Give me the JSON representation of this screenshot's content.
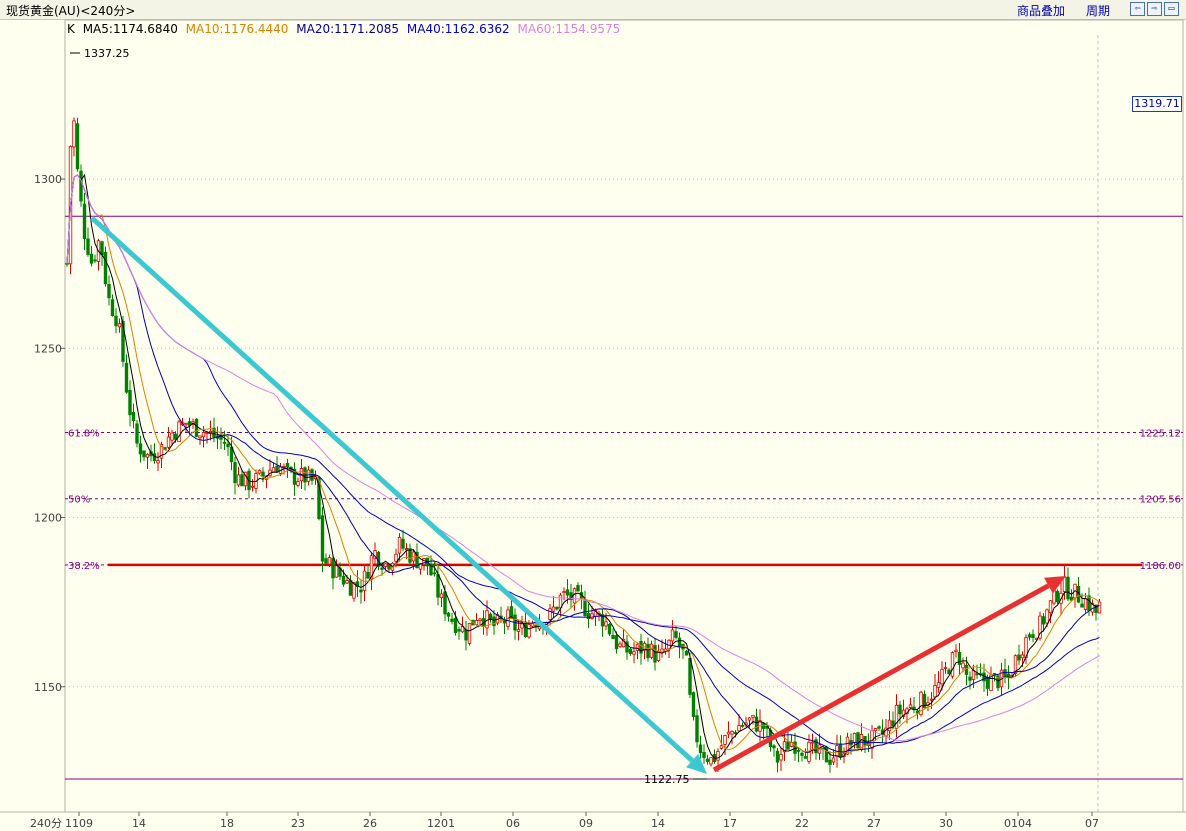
{
  "window": {
    "title": "现货黄金(AU)<240分>",
    "menu_overlay": "商品叠加",
    "menu_weekly": "周期",
    "nav_prev_icon": "⇦",
    "nav_next_icon": "⇨",
    "nav_full_icon": "▭"
  },
  "legend": {
    "k": "K",
    "ma5": "MA5:1174.6840",
    "ma10": "MA10:1176.4440",
    "ma20": "MA20:1171.2085",
    "ma40": "MA40:1162.6362",
    "ma60": "MA60:1154.9575"
  },
  "colors": {
    "ma5": "#000000",
    "ma10": "#E08000",
    "ma20": "#0000A0",
    "ma40": "#0000C8",
    "ma60": "#E080E0",
    "up_candle": "#E00000",
    "down_candle": "#008000",
    "fib_line": "#800080",
    "resistance": "#E00000",
    "down_arrow": "#3CC8D0",
    "up_arrow": "#E83030"
  },
  "current_price_tag": "1319.71",
  "chart_data": {
    "type": "candlestick",
    "period_label": "240分",
    "x_tick_labels": [
      "1109",
      "14",
      "18",
      "23",
      "26",
      "1201",
      "06",
      "09",
      "14",
      "17",
      "22",
      "27",
      "30",
      "0104",
      "07"
    ],
    "y_ticks": [
      1300,
      1250,
      1200,
      1150
    ],
    "ylim": [
      1113,
      1347
    ],
    "high_label": "1337.25",
    "low_label": "1122.75",
    "fib_levels": [
      {
        "label": "61.8%",
        "value": 1225.12,
        "value_label": "1225.12"
      },
      {
        "label": "50%",
        "value": 1205.56,
        "value_label": "1205.56"
      },
      {
        "label": "38.2%",
        "value": 1186.0,
        "value_label": "1186.00"
      }
    ],
    "horizontal_lines": [
      1289,
      1122.75
    ],
    "moving_averages": [
      "MA5",
      "MA10",
      "MA20",
      "MA40",
      "MA60"
    ]
  }
}
